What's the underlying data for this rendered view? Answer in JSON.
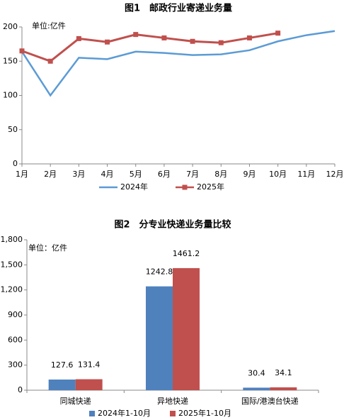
{
  "chart_data": [
    {
      "type": "line",
      "title": "图1　邮政行业寄递业务量",
      "annotation": "单位:亿件",
      "categories": [
        "1月",
        "2月",
        "3月",
        "4月",
        "5月",
        "6月",
        "7月",
        "8月",
        "9月",
        "10月",
        "11月",
        "12月"
      ],
      "series": [
        {
          "name": "2024年",
          "color": "#5b9bd5",
          "values": [
            164,
            100,
            155,
            153,
            164,
            162,
            159,
            160,
            166,
            179,
            188,
            194
          ]
        },
        {
          "name": "2025年",
          "color": "#c0504d",
          "marker": "square",
          "values": [
            165,
            150,
            183,
            178,
            189,
            184,
            179,
            177,
            184,
            191,
            null,
            null
          ]
        }
      ],
      "ylim": [
        0,
        200
      ],
      "yticks": [
        0,
        50,
        100,
        150,
        200
      ],
      "legend": "bottom"
    },
    {
      "type": "bar",
      "title": "图2　分专业快递业务量比较",
      "annotation": "单位：亿件",
      "categories": [
        "同城快递",
        "异地快递",
        "国际/港澳台快递"
      ],
      "series": [
        {
          "name": "2024年1-10月",
          "color": "#4f81bd",
          "values": [
            127.6,
            1242.8,
            30.4
          ]
        },
        {
          "name": "2025年1-10月",
          "color": "#c0504d",
          "values": [
            131.4,
            1461.2,
            34.1
          ]
        }
      ],
      "ylim": [
        0,
        1800
      ],
      "yticks": [
        0,
        300,
        600,
        900,
        {
          "value": 1200,
          "label": "1,200"
        },
        {
          "value": 1500,
          "label": "1,500"
        },
        {
          "value": 1800,
          "label": "1,800"
        }
      ],
      "legend": "bottom"
    }
  ]
}
